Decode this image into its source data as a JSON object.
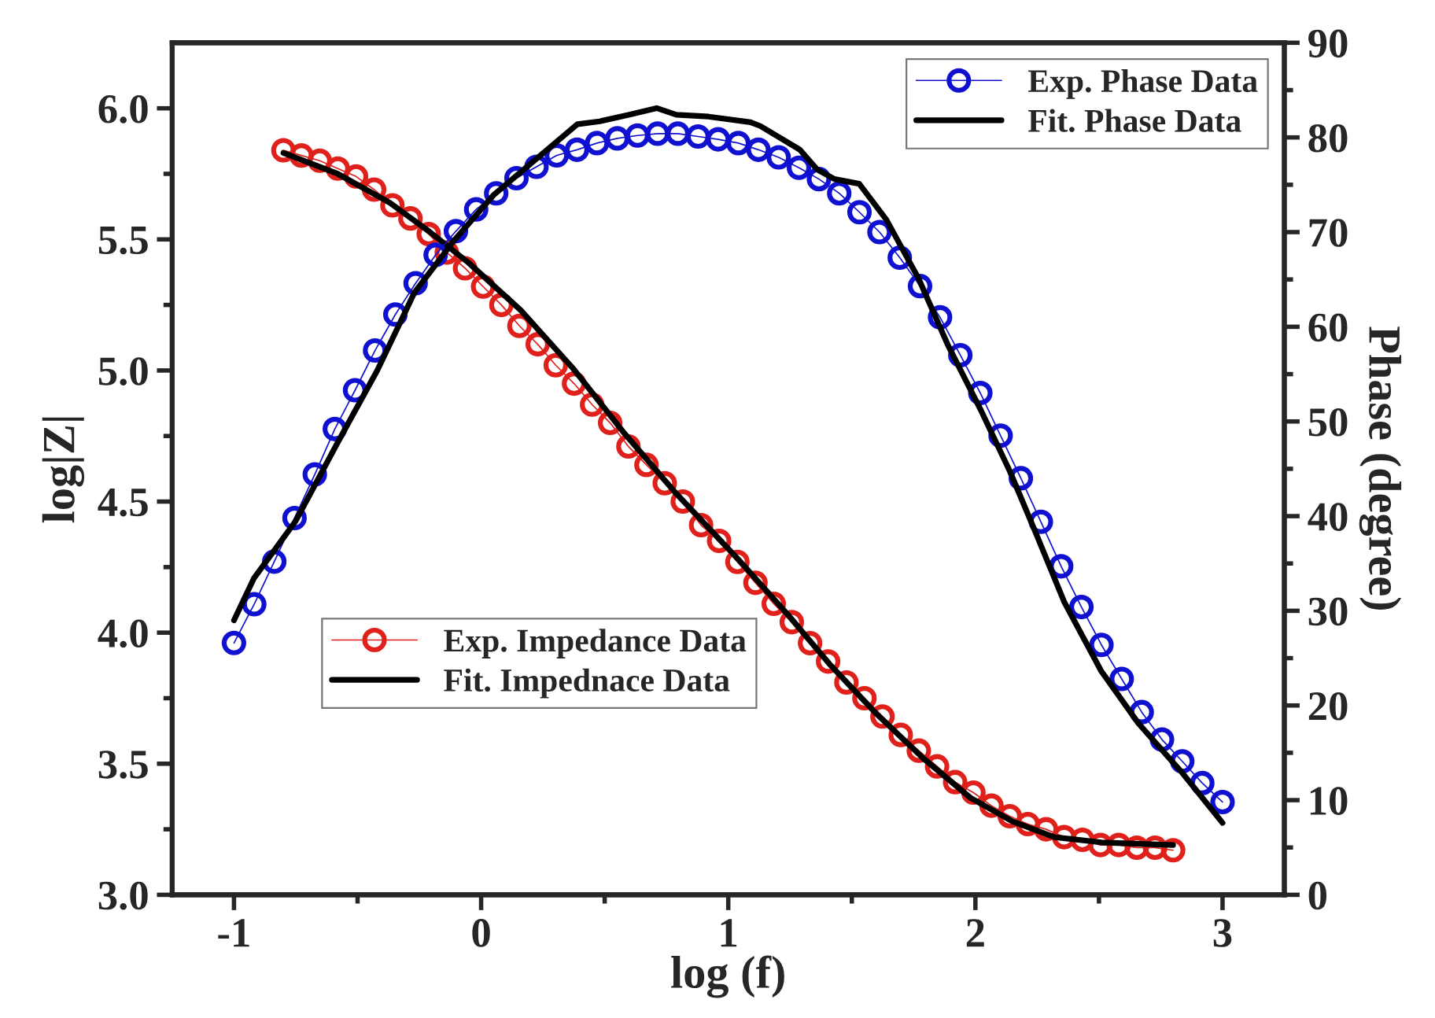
{
  "chart_data": {
    "type": "line",
    "xlabel": "log (f)",
    "ylabel": "log|Z|",
    "y2label": "Phase (degree)",
    "xlim": [
      -1.25,
      3.25
    ],
    "ylim": [
      3.0,
      6.25
    ],
    "y2lim": [
      0,
      90
    ],
    "xticks": [
      -1,
      {
        "value": -0.5,
        "label": null
      },
      0,
      {
        "value": 0.5,
        "label": null
      },
      1,
      {
        "value": 1.5,
        "label": null
      },
      2,
      {
        "value": 2.5,
        "label": null
      },
      3
    ],
    "yticks": [
      {
        "value": 3.0,
        "label": "3.0"
      },
      {
        "value": 3.25,
        "label": null
      },
      {
        "value": 3.5,
        "label": "3.5"
      },
      {
        "value": 3.75,
        "label": null
      },
      {
        "value": 4.0,
        "label": "4.0"
      },
      {
        "value": 4.25,
        "label": null
      },
      {
        "value": 4.5,
        "label": "4.5"
      },
      {
        "value": 4.75,
        "label": null
      },
      {
        "value": 5.0,
        "label": "5.0"
      },
      {
        "value": 5.25,
        "label": null
      },
      {
        "value": 5.5,
        "label": "5.5"
      },
      {
        "value": 5.75,
        "label": null
      },
      {
        "value": 6.0,
        "label": "6.0"
      }
    ],
    "y2ticks": [
      0,
      {
        "value": 5,
        "label": null
      },
      10,
      {
        "value": 15,
        "label": null
      },
      20,
      {
        "value": 25,
        "label": null
      },
      30,
      {
        "value": 35,
        "label": null
      },
      40,
      {
        "value": 45,
        "label": null
      },
      50,
      {
        "value": 55,
        "label": null
      },
      60,
      {
        "value": 65,
        "label": null
      },
      70,
      {
        "value": 75,
        "label": null
      },
      80,
      {
        "value": 85,
        "label": null
      },
      90
    ],
    "grid": false,
    "legend": [
      "lower left",
      "top right"
    ],
    "series": [
      {
        "name": "Exp. Impedance Data",
        "marker": "circle",
        "color": "#e0201b",
        "axis": "y",
        "x": [
          -0.8,
          -0.727,
          -0.653,
          -0.58,
          -0.506,
          -0.433,
          -0.359,
          -0.286,
          -0.212,
          -0.139,
          -0.065,
          0.008,
          0.082,
          0.155,
          0.229,
          0.302,
          0.376,
          0.449,
          0.522,
          0.596,
          0.669,
          0.743,
          0.816,
          0.89,
          0.963,
          1.037,
          1.11,
          1.184,
          1.257,
          1.331,
          1.404,
          1.478,
          1.551,
          1.624,
          1.698,
          1.771,
          1.845,
          1.918,
          1.992,
          2.065,
          2.139,
          2.212,
          2.286,
          2.359,
          2.433,
          2.506,
          2.58,
          2.653,
          2.727,
          2.8
        ],
        "values": [
          5.84,
          5.82,
          5.8,
          5.77,
          5.74,
          5.69,
          5.63,
          5.58,
          5.52,
          5.45,
          5.39,
          5.32,
          5.25,
          5.17,
          5.1,
          5.02,
          4.95,
          4.87,
          4.8,
          4.71,
          4.64,
          4.57,
          4.5,
          4.41,
          4.35,
          4.27,
          4.19,
          4.11,
          4.04,
          3.96,
          3.89,
          3.81,
          3.75,
          3.68,
          3.61,
          3.55,
          3.49,
          3.43,
          3.39,
          3.34,
          3.3,
          3.27,
          3.25,
          3.22,
          3.21,
          3.19,
          3.19,
          3.18,
          3.18,
          3.17
        ]
      },
      {
        "name": "Fit. Impednace Data",
        "marker": "none",
        "color": "#000000",
        "axis": "y",
        "x": [
          -0.8,
          -0.58,
          -0.37,
          -0.21,
          -0.05,
          0.16,
          0.37,
          0.58,
          0.79,
          0.97,
          1.04,
          1.24,
          1.41,
          1.6,
          1.79,
          1.98,
          2.15,
          2.32,
          2.51,
          2.8
        ],
        "values": [
          5.83,
          5.75,
          5.64,
          5.53,
          5.41,
          5.23,
          5.01,
          4.76,
          4.53,
          4.35,
          4.28,
          4.07,
          3.88,
          3.69,
          3.52,
          3.37,
          3.28,
          3.22,
          3.2,
          3.19
        ]
      },
      {
        "name": "Exp. Phase Data",
        "marker": "circle",
        "color": "#1010d0",
        "axis": "y2",
        "x": [
          -1,
          -0.918,
          -0.837,
          -0.755,
          -0.673,
          -0.592,
          -0.51,
          -0.429,
          -0.347,
          -0.265,
          -0.184,
          -0.102,
          -0.02,
          0.061,
          0.143,
          0.224,
          0.306,
          0.388,
          0.469,
          0.551,
          0.633,
          0.714,
          0.796,
          0.878,
          0.959,
          1.041,
          1.122,
          1.204,
          1.286,
          1.367,
          1.449,
          1.531,
          1.612,
          1.694,
          1.776,
          1.857,
          1.939,
          2.02,
          2.102,
          2.184,
          2.265,
          2.347,
          2.429,
          2.51,
          2.592,
          2.673,
          2.755,
          2.837,
          2.918,
          3
        ],
        "values": [
          26.6,
          30.7,
          35.2,
          39.8,
          44.4,
          49.2,
          53.3,
          57.5,
          61.3,
          64.6,
          67.6,
          70.1,
          72.4,
          74.1,
          75.7,
          76.9,
          78.1,
          78.7,
          79.4,
          79.9,
          80.2,
          80.4,
          80.4,
          80.1,
          79.8,
          79.4,
          78.7,
          77.9,
          76.8,
          75.6,
          74.1,
          72.1,
          70.0,
          67.3,
          64.3,
          61.0,
          57.0,
          53.0,
          48.5,
          44.0,
          39.4,
          34.7,
          30.4,
          26.4,
          22.8,
          19.3,
          16.4,
          14.1,
          11.8,
          9.8
        ]
      },
      {
        "name": "Fit. Phase Data",
        "marker": "none",
        "color": "#000000",
        "axis": "y2",
        "x": [
          -1.0,
          -0.92,
          -0.75,
          -0.58,
          -0.42,
          -0.27,
          -0.11,
          0.05,
          0.39,
          0.48,
          0.6,
          0.71,
          0.79,
          0.92,
          1.09,
          1.13,
          1.29,
          1.36,
          1.43,
          1.53,
          1.64,
          1.77,
          1.89,
          2.02,
          2.14,
          2.24,
          2.36,
          2.51,
          2.66,
          2.83,
          3.0
        ],
        "values": [
          29.0,
          33.4,
          39.5,
          47.8,
          55.4,
          63.6,
          69.1,
          73.9,
          81.4,
          81.7,
          82.4,
          83.1,
          82.4,
          82.2,
          81.6,
          81.2,
          78.7,
          76.6,
          75.6,
          75.1,
          71.3,
          65.1,
          58.0,
          51.3,
          44.7,
          38.5,
          30.9,
          23.6,
          18.1,
          13.1,
          7.6
        ]
      }
    ]
  }
}
